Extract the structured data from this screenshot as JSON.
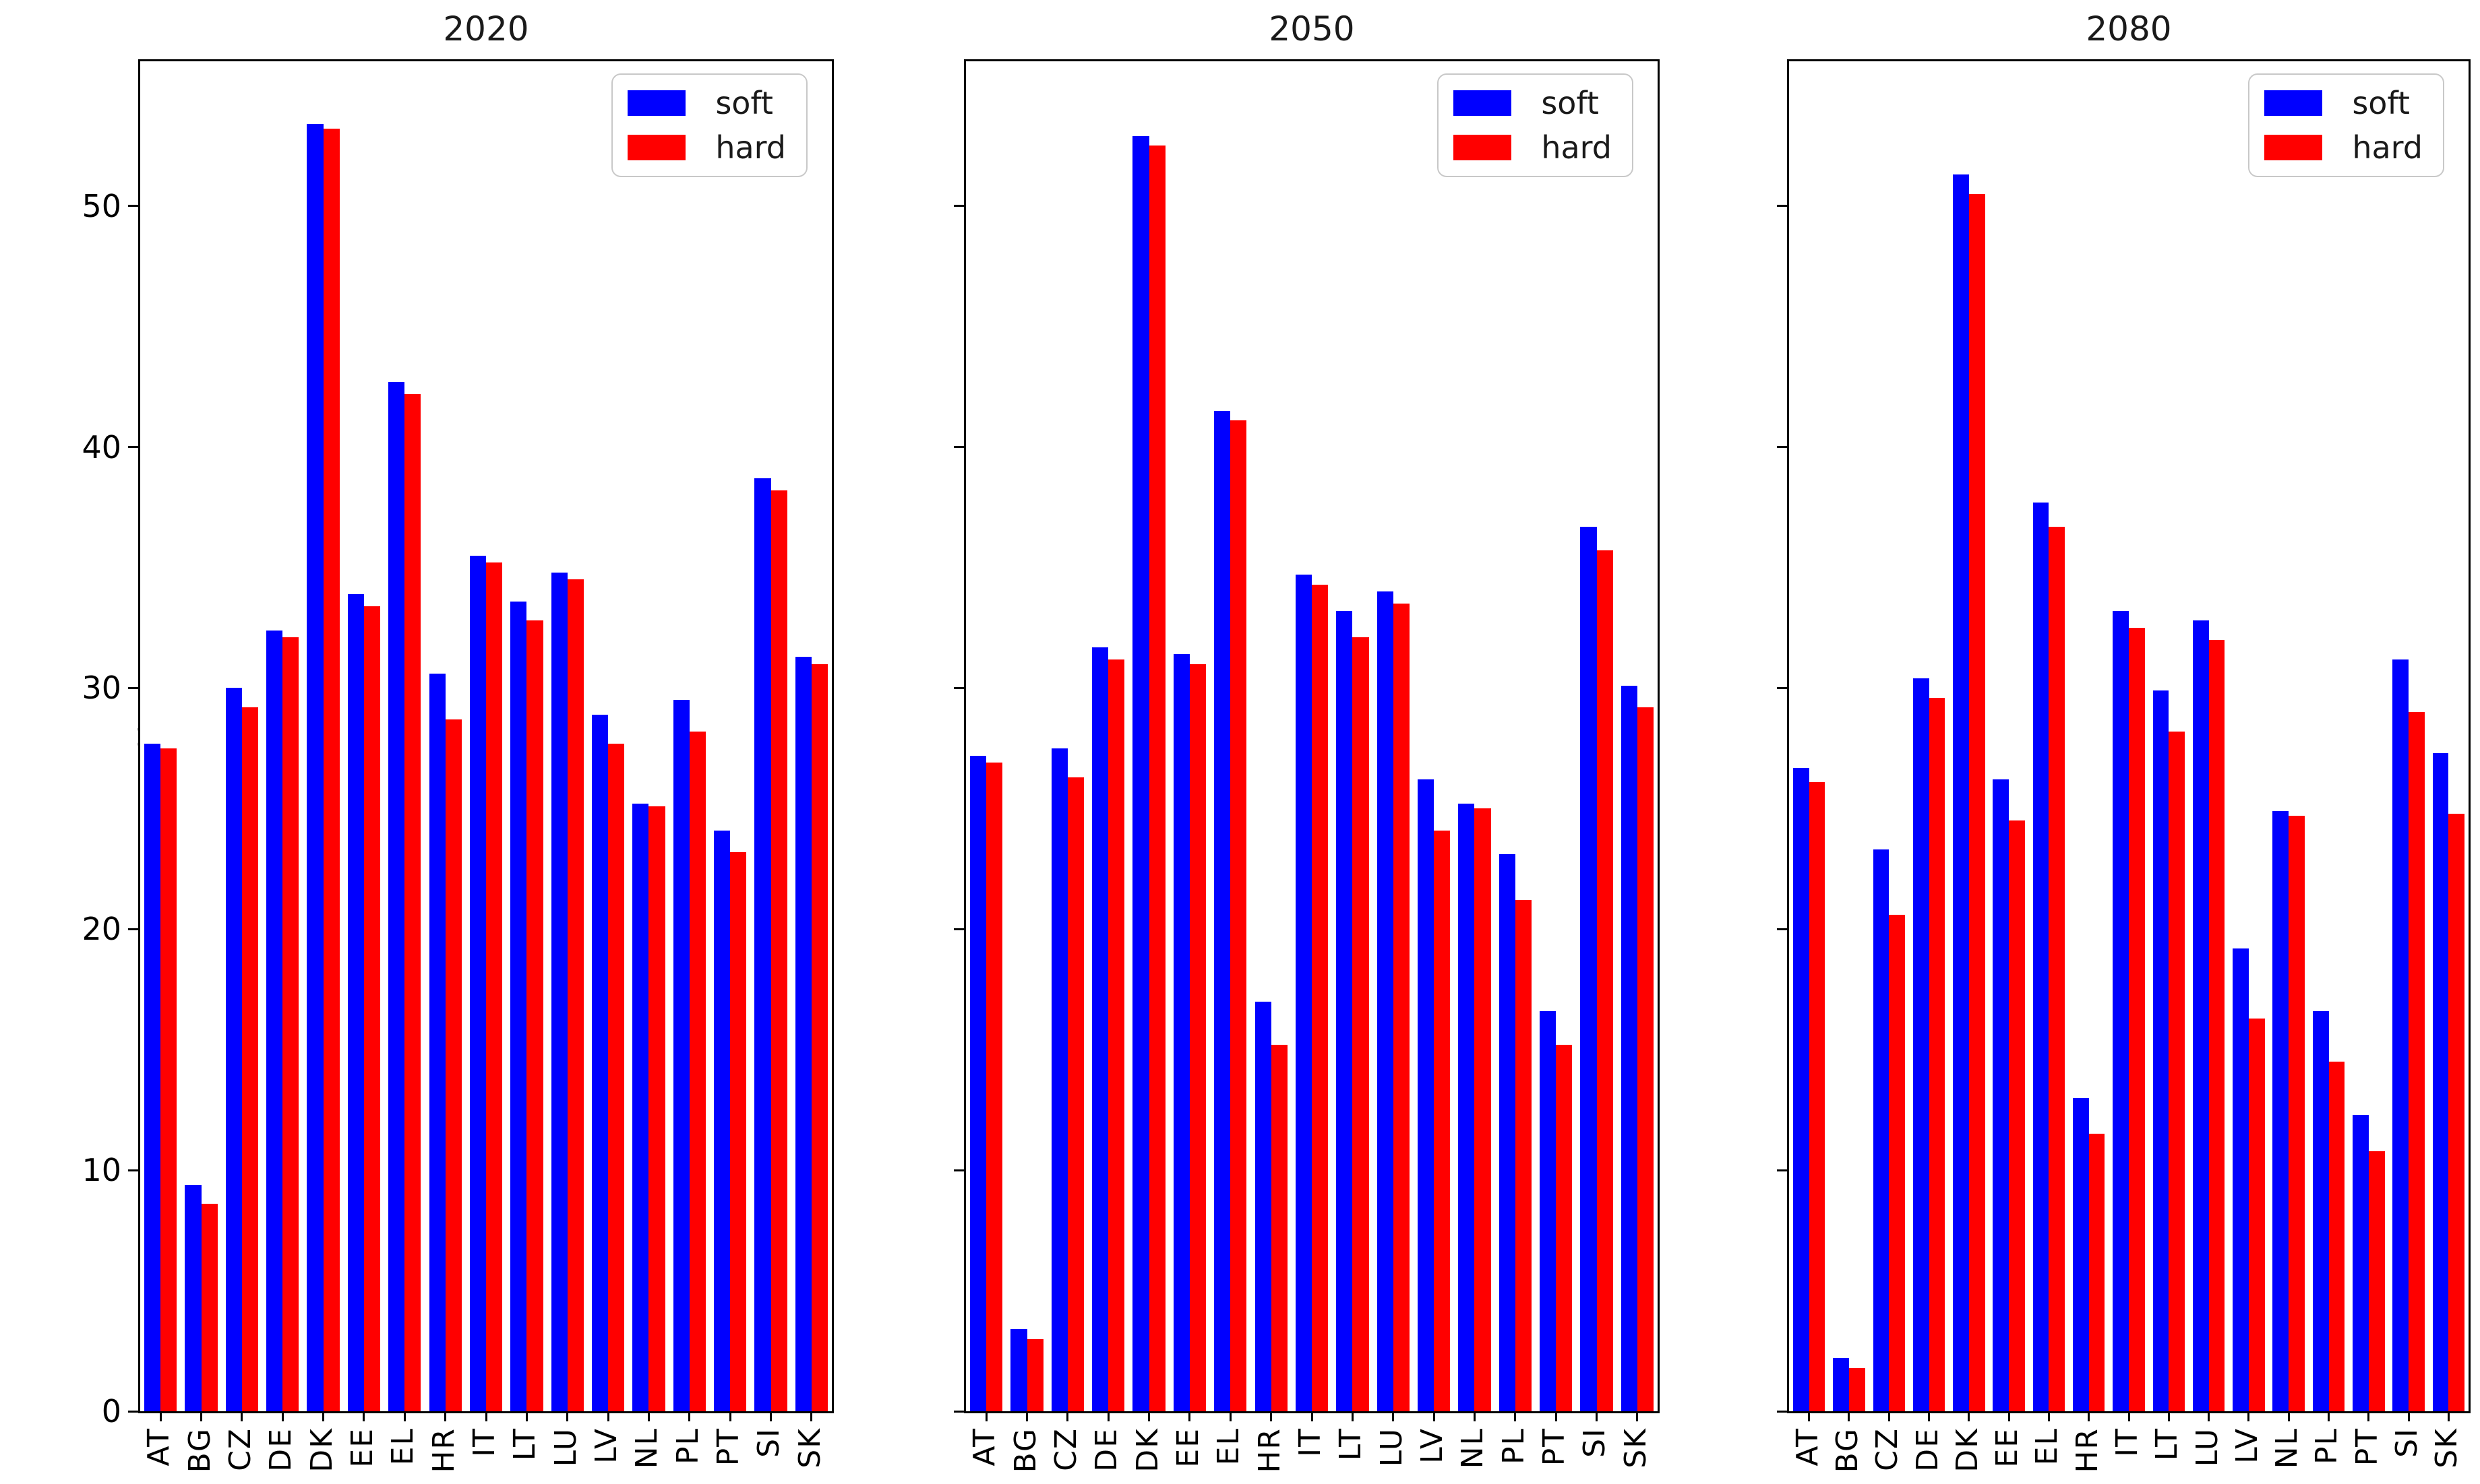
{
  "figure": {
    "background": "#ffffff",
    "series_colors": {
      "soft": "#0000ff",
      "hard": "#ff0000"
    },
    "axis_color": "#000000"
  },
  "chart_data": [
    {
      "type": "bar",
      "title": "2020",
      "categories": [
        "AT",
        "BG",
        "CZ",
        "DE",
        "DK",
        "EE",
        "EL",
        "HR",
        "IT",
        "LT",
        "LU",
        "LV",
        "NL",
        "PL",
        "PT",
        "SI",
        "SK"
      ],
      "series": [
        {
          "name": "soft",
          "color": "#0000ff",
          "values": [
            27.7,
            9.4,
            30.0,
            32.4,
            53.4,
            33.9,
            42.7,
            30.6,
            35.5,
            33.6,
            34.8,
            28.9,
            25.2,
            29.5,
            24.1,
            38.7,
            31.3
          ]
        },
        {
          "name": "hard",
          "color": "#ff0000",
          "values": [
            27.5,
            8.6,
            29.2,
            32.1,
            53.2,
            33.4,
            42.2,
            28.7,
            35.2,
            32.8,
            34.5,
            27.7,
            25.1,
            28.2,
            23.2,
            38.2,
            31.0
          ]
        }
      ],
      "xlabel": "",
      "ylabel": "%",
      "ylim": [
        0,
        56
      ],
      "yticks": [
        0,
        10,
        20,
        30,
        40,
        50
      ],
      "show_ytick_labels": true,
      "legend_position": "upper right",
      "grid": false
    },
    {
      "type": "bar",
      "title": "2050",
      "categories": [
        "AT",
        "BG",
        "CZ",
        "DE",
        "DK",
        "EE",
        "EL",
        "HR",
        "IT",
        "LT",
        "LU",
        "LV",
        "NL",
        "PL",
        "PT",
        "SI",
        "SK"
      ],
      "series": [
        {
          "name": "soft",
          "color": "#0000ff",
          "values": [
            27.2,
            3.4,
            27.5,
            31.7,
            52.9,
            31.4,
            41.5,
            17.0,
            34.7,
            33.2,
            34.0,
            26.2,
            25.2,
            23.1,
            16.6,
            36.7,
            30.1
          ]
        },
        {
          "name": "hard",
          "color": "#ff0000",
          "values": [
            26.9,
            3.0,
            26.3,
            31.2,
            52.5,
            31.0,
            41.1,
            15.2,
            34.3,
            32.1,
            33.5,
            24.1,
            25.0,
            21.2,
            15.2,
            35.7,
            29.2
          ]
        }
      ],
      "xlabel": "",
      "ylabel": "",
      "ylim": [
        0,
        56
      ],
      "yticks": [
        0,
        10,
        20,
        30,
        40,
        50
      ],
      "show_ytick_labels": false,
      "legend_position": "upper right",
      "grid": false
    },
    {
      "type": "bar",
      "title": "2080",
      "categories": [
        "AT",
        "BG",
        "CZ",
        "DE",
        "DK",
        "EE",
        "EL",
        "HR",
        "IT",
        "LT",
        "LU",
        "LV",
        "NL",
        "PL",
        "PT",
        "SI",
        "SK"
      ],
      "series": [
        {
          "name": "soft",
          "color": "#0000ff",
          "values": [
            26.7,
            2.2,
            23.3,
            30.4,
            51.3,
            26.2,
            37.7,
            13.0,
            33.2,
            29.9,
            32.8,
            19.2,
            24.9,
            16.6,
            12.3,
            31.2,
            27.3
          ]
        },
        {
          "name": "hard",
          "color": "#ff0000",
          "values": [
            26.1,
            1.8,
            20.6,
            29.6,
            50.5,
            24.5,
            36.7,
            11.5,
            32.5,
            28.2,
            32.0,
            16.3,
            24.7,
            14.5,
            10.8,
            29.0,
            24.8
          ]
        }
      ],
      "xlabel": "",
      "ylabel": "",
      "ylim": [
        0,
        56
      ],
      "yticks": [
        0,
        10,
        20,
        30,
        40,
        50
      ],
      "show_ytick_labels": false,
      "legend_position": "upper right",
      "grid": false
    }
  ]
}
